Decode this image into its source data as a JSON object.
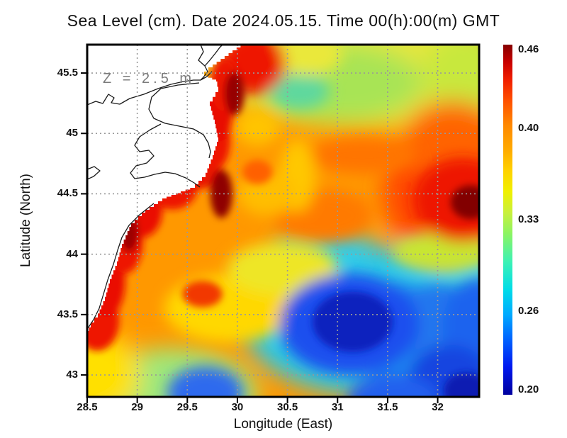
{
  "title": "Sea Level (cm). Date 2024.05.15. Time 00(h):00(m) GMT",
  "annotation": "Z = 2.5 m",
  "axes": {
    "x": {
      "label": "Longitude (East)",
      "ticks": [
        "28.5",
        "29",
        "29.5",
        "30",
        "30.5",
        "31",
        "31.5",
        "32"
      ],
      "range": [
        28.5,
        32.41
      ]
    },
    "y": {
      "label": "Latitude (North)",
      "ticks": [
        "45.5",
        "45",
        "44.5",
        "44",
        "43.5",
        "43"
      ],
      "range": [
        42.82,
        45.74
      ]
    }
  },
  "colorbar": {
    "ticks": [
      "0.46",
      "0.40",
      "0.33",
      "0.26",
      "0.20"
    ],
    "min": 0.2,
    "max": 0.46,
    "gradient": [
      [
        0,
        "#00009E"
      ],
      [
        0.08,
        "#0018F0"
      ],
      [
        0.16,
        "#0064FF"
      ],
      [
        0.23,
        "#00AAFF"
      ],
      [
        0.3,
        "#00DCE8"
      ],
      [
        0.38,
        "#3CF2B4"
      ],
      [
        0.46,
        "#8CF462"
      ],
      [
        0.52,
        "#C8F03C"
      ],
      [
        0.58,
        "#F0F000"
      ],
      [
        0.64,
        "#FFD200"
      ],
      [
        0.7,
        "#FFAA00"
      ],
      [
        0.77,
        "#FF8800"
      ],
      [
        0.84,
        "#FF5000"
      ],
      [
        0.9,
        "#F01E00"
      ],
      [
        0.95,
        "#C80000"
      ],
      [
        1,
        "#860000"
      ]
    ]
  },
  "chart_data": {
    "type": "heatmap",
    "title": "Sea Level (cm). Date 2024.05.15. Time 00(h):00(m) GMT",
    "xlabel": "Longitude (East)",
    "ylabel": "Latitude (North)",
    "depth_annotation": "Z = 2.5 m",
    "value_range": [
      0.2,
      0.46
    ],
    "colorbar_ticks": [
      0.46,
      0.4,
      0.33,
      0.26,
      0.2
    ],
    "lon_range": [
      28.5,
      32.41
    ],
    "lat_range": [
      42.82,
      45.74
    ],
    "grid_on": true,
    "legend_position": "right-colorbar",
    "sampled_grid": {
      "lons": [
        28.5,
        29.0,
        29.5,
        30.0,
        30.5,
        31.0,
        31.5,
        32.0,
        32.4
      ],
      "lats": [
        45.5,
        45.0,
        44.5,
        44.0,
        43.5,
        43.0
      ],
      "values": [
        [
          null,
          null,
          null,
          0.44,
          0.37,
          0.36,
          0.36,
          0.37,
          0.38
        ],
        [
          null,
          null,
          null,
          0.42,
          0.4,
          0.37,
          0.37,
          0.38,
          0.39
        ],
        [
          null,
          null,
          null,
          0.41,
          0.41,
          0.4,
          0.4,
          0.42,
          0.46
        ],
        [
          null,
          0.43,
          0.41,
          0.41,
          0.41,
          0.41,
          0.4,
          0.36,
          0.31
        ],
        [
          0.44,
          0.41,
          0.4,
          0.39,
          0.33,
          0.25,
          0.28,
          0.27,
          0.25
        ],
        [
          0.39,
          0.37,
          0.32,
          0.3,
          0.31,
          0.26,
          0.28,
          0.24,
          0.22
        ]
      ],
      "note": "null = land (north-western Black Sea coast / Danube delta)"
    },
    "features": [
      {
        "name": "maximum (dark red spot)",
        "lon": 32.3,
        "lat": 44.45,
        "value": 0.46
      },
      {
        "name": "coastal high band along west coast",
        "value": 0.44
      },
      {
        "name": "high patch near Danube delta",
        "lon": 30.1,
        "lat": 45.55,
        "value": 0.44
      },
      {
        "name": "minimum (dark blue center)",
        "lon": 31.15,
        "lat": 43.42,
        "value": 0.2
      },
      {
        "name": "low center bottom-right",
        "lon": 32.2,
        "lat": 42.9,
        "value": 0.22
      },
      {
        "name": "low spot bottom-left",
        "lon": 29.68,
        "lat": 42.85,
        "value": 0.27
      }
    ]
  },
  "map": {
    "base_color": "#FF9800",
    "land_color": "#FFFFFF",
    "coast_color": "#1a1a1a",
    "grid_color": "#999999",
    "land_steps": [
      [
        222,
        0
      ],
      [
        177,
        32
      ],
      [
        165,
        44
      ],
      [
        182,
        52
      ],
      [
        185,
        67
      ],
      [
        173,
        87
      ],
      [
        180,
        112
      ],
      [
        185,
        137
      ],
      [
        177,
        162
      ],
      [
        167,
        187
      ],
      [
        152,
        202
      ],
      [
        112,
        217
      ],
      [
        82,
        237
      ],
      [
        62,
        257
      ],
      [
        49,
        287
      ],
      [
        42,
        312
      ],
      [
        32,
        337
      ],
      [
        25,
        362
      ],
      [
        15,
        385
      ],
      [
        5,
        399
      ],
      [
        0,
        409
      ]
    ],
    "coastlines": [
      [
        [
          0,
          85
        ],
        [
          12,
          80
        ],
        [
          22,
          83
        ],
        [
          30,
          70
        ],
        [
          38,
          75
        ],
        [
          34,
          82
        ],
        [
          46,
          84
        ],
        [
          60,
          76
        ],
        [
          80,
          70
        ],
        [
          100,
          62
        ],
        [
          118,
          56
        ],
        [
          136,
          52
        ],
        [
          150,
          50
        ],
        [
          160,
          50
        ]
      ],
      [
        [
          160,
          0
        ],
        [
          164,
          10
        ],
        [
          157,
          22
        ],
        [
          166,
          30
        ],
        [
          173,
          22
        ],
        [
          181,
          12
        ],
        [
          187,
          4
        ],
        [
          191,
          0
        ]
      ],
      [
        [
          166,
          30
        ],
        [
          170,
          38
        ],
        [
          164,
          46
        ],
        [
          160,
          50
        ],
        [
          169,
          45
        ],
        [
          176,
          38
        ]
      ],
      [
        [
          158,
          54
        ],
        [
          128,
          57
        ],
        [
          104,
          62
        ],
        [
          91,
          74
        ],
        [
          87,
          91
        ],
        [
          94,
          104
        ],
        [
          110,
          111
        ],
        [
          130,
          115
        ],
        [
          150,
          119
        ],
        [
          164,
          127
        ],
        [
          171,
          139
        ],
        [
          174,
          151
        ],
        [
          172,
          160
        ]
      ],
      [
        [
          104,
          112
        ],
        [
          89,
          120
        ],
        [
          74,
          130
        ],
        [
          67,
          142
        ],
        [
          74,
          151
        ],
        [
          87,
          149
        ],
        [
          94,
          157
        ],
        [
          84,
          167
        ],
        [
          69,
          171
        ],
        [
          61,
          181
        ],
        [
          67,
          189
        ],
        [
          81,
          187
        ],
        [
          95,
          183
        ],
        [
          110,
          180
        ],
        [
          124,
          182
        ],
        [
          139,
          188
        ],
        [
          151,
          195
        ],
        [
          159,
          201
        ]
      ],
      [
        [
          94,
          224
        ],
        [
          74,
          240
        ],
        [
          59,
          255
        ],
        [
          49,
          272
        ],
        [
          43,
          290
        ],
        [
          37,
          310
        ],
        [
          29,
          332
        ],
        [
          23,
          352
        ],
        [
          17,
          372
        ],
        [
          9,
          388
        ],
        [
          1,
          400
        ]
      ],
      [
        [
          0,
          176
        ],
        [
          10,
          172
        ],
        [
          18,
          178
        ],
        [
          9,
          186
        ],
        [
          0,
          190
        ]
      ]
    ],
    "field_blobs": [
      {
        "g": 0,
        "lon": 31.2,
        "lat": 45.55,
        "rx": 1.5,
        "ry": 0.5,
        "c": "#E6E63C"
      },
      {
        "g": 0,
        "lon": 31.0,
        "lat": 45.42,
        "rx": 0.85,
        "ry": 0.32,
        "c": "#A8E455"
      },
      {
        "g": 0,
        "lon": 32.35,
        "lat": 45.5,
        "rx": 0.5,
        "ry": 0.35,
        "c": "#C8E83C"
      },
      {
        "g": 0,
        "lon": 32.2,
        "lat": 44.5,
        "rx": 0.75,
        "ry": 0.55,
        "c": "#FF4A00"
      },
      {
        "g": 0,
        "lon": 32.15,
        "lat": 44.95,
        "rx": 0.5,
        "ry": 0.32,
        "c": "#FF6400"
      },
      {
        "g": 0,
        "lon": 31.3,
        "lat": 43.45,
        "rx": 1.25,
        "ry": 0.62,
        "c": "#2AC8E6"
      },
      {
        "g": 0,
        "lon": 30.9,
        "lat": 44.0,
        "rx": 0.5,
        "ry": 0.2,
        "c": "#30CCE8"
      },
      {
        "g": 0,
        "lon": 32.45,
        "lat": 43.75,
        "rx": 0.45,
        "ry": 0.3,
        "c": "#35D2DC"
      },
      {
        "g": 0,
        "lon": 29.35,
        "lat": 42.82,
        "rx": 0.85,
        "ry": 0.4,
        "c": "#9FE87A"
      },
      {
        "g": 0,
        "lon": 28.58,
        "lat": 43.0,
        "rx": 0.45,
        "ry": 0.35,
        "c": "#FFE000"
      },
      {
        "g": 1,
        "lon": 30.62,
        "lat": 45.35,
        "rx": 0.3,
        "ry": 0.15,
        "c": "#5FD89E"
      },
      {
        "g": 1,
        "lon": 30.7,
        "lat": 45.66,
        "rx": 0.35,
        "ry": 0.18,
        "c": "#EAE83A"
      },
      {
        "g": 1,
        "lon": 29.92,
        "lat": 43.55,
        "rx": 0.65,
        "ry": 0.28,
        "c": "#FFD800"
      },
      {
        "g": 1,
        "lon": 30.45,
        "lat": 43.88,
        "rx": 0.55,
        "ry": 0.22,
        "c": "#EEE626"
      },
      {
        "g": 1,
        "lon": 32.05,
        "lat": 44.02,
        "rx": 0.5,
        "ry": 0.16,
        "c": "#C8E632"
      },
      {
        "g": 1,
        "lon": 31.6,
        "lat": 43.32,
        "rx": 0.4,
        "ry": 0.45,
        "c": "#1E86F0"
      },
      {
        "g": 1,
        "lon": 32.0,
        "lat": 43.45,
        "rx": 0.5,
        "ry": 0.3,
        "c": "#2277EE"
      },
      {
        "g": 1,
        "lon": 32.4,
        "lat": 43.4,
        "rx": 0.35,
        "ry": 0.4,
        "c": "#1E64EE"
      },
      {
        "g": 1,
        "lon": 31.12,
        "lat": 43.42,
        "rx": 0.7,
        "ry": 0.42,
        "c": "#1A50EE"
      },
      {
        "g": 1,
        "lon": 32.12,
        "lat": 42.95,
        "rx": 0.42,
        "ry": 0.3,
        "c": "#1545E0"
      },
      {
        "g": 1,
        "lon": 29.68,
        "lat": 42.85,
        "rx": 0.38,
        "ry": 0.22,
        "c": "#2E6AEE"
      },
      {
        "g": 1,
        "lon": 31.55,
        "lat": 42.8,
        "rx": 0.45,
        "ry": 0.2,
        "c": "#2060EE"
      },
      {
        "g": 1,
        "lon": 31.25,
        "lat": 44.82,
        "rx": 0.55,
        "ry": 0.15,
        "c": "#FF7400"
      },
      {
        "g": 1,
        "lon": 30.85,
        "lat": 44.32,
        "rx": 0.5,
        "ry": 0.22,
        "c": "#FF7A00"
      },
      {
        "g": 1,
        "lon": 30.6,
        "lat": 44.65,
        "rx": 0.18,
        "ry": 0.3,
        "c": "#FFC800"
      },
      {
        "g": 1,
        "lon": 30.2,
        "lat": 45.05,
        "rx": 0.22,
        "ry": 0.15,
        "c": "#FFC400"
      },
      {
        "g": 1,
        "lon": 30.3,
        "lat": 44.5,
        "rx": 0.3,
        "ry": 0.18,
        "c": "#FFBE00"
      },
      {
        "g": 1,
        "lon": 32.25,
        "lat": 44.45,
        "rx": 0.5,
        "ry": 0.35,
        "c": "#EE1600"
      },
      {
        "g": 1,
        "lon": 30.15,
        "lat": 45.58,
        "rx": 0.33,
        "ry": 0.26,
        "c": "#EE1400"
      },
      {
        "g": 2,
        "lon": 31.15,
        "lat": 43.44,
        "rx": 0.4,
        "ry": 0.25,
        "c": "#0A22BE"
      },
      {
        "g": 2,
        "lon": 32.28,
        "lat": 42.87,
        "rx": 0.22,
        "ry": 0.15,
        "c": "#0A1CB2"
      },
      {
        "g": 2,
        "lon": 32.33,
        "lat": 44.43,
        "rx": 0.2,
        "ry": 0.14,
        "c": "#820000"
      },
      {
        "g": 2,
        "lon": 29.65,
        "lat": 43.67,
        "rx": 0.2,
        "ry": 0.11,
        "c": "#F23800"
      },
      {
        "g": 2,
        "lon": 30.2,
        "lat": 44.68,
        "rx": 0.15,
        "ry": 0.1,
        "c": "#FF6000"
      },
      {
        "g": 2,
        "lon": 28.6,
        "lat": 43.45,
        "rx": 0.22,
        "ry": 0.25,
        "c": "#EE1200"
      },
      {
        "g": 2,
        "lon": 28.7,
        "lat": 43.78,
        "rx": 0.18,
        "ry": 0.3,
        "c": "#EA1000"
      },
      {
        "g": 2,
        "lon": 28.88,
        "lat": 44.12,
        "rx": 0.18,
        "ry": 0.28,
        "c": "#EE1200"
      },
      {
        "g": 2,
        "lon": 29.05,
        "lat": 44.36,
        "rx": 0.2,
        "ry": 0.22,
        "c": "#EA1000"
      },
      {
        "g": 2,
        "lon": 29.35,
        "lat": 44.55,
        "rx": 0.25,
        "ry": 0.18,
        "c": "#EE1600"
      },
      {
        "g": 2,
        "lon": 29.62,
        "lat": 44.72,
        "rx": 0.2,
        "ry": 0.18,
        "c": "#EA1200"
      },
      {
        "g": 2,
        "lon": 29.78,
        "lat": 44.95,
        "rx": 0.15,
        "ry": 0.25,
        "c": "#EE1200"
      },
      {
        "g": 2,
        "lon": 29.8,
        "lat": 45.18,
        "rx": 0.15,
        "ry": 0.25,
        "c": "#E81000"
      },
      {
        "g": 2,
        "lon": 29.88,
        "lat": 45.4,
        "rx": 0.15,
        "ry": 0.22,
        "c": "#EE1400"
      },
      {
        "g": 2,
        "lon": 28.92,
        "lat": 44.18,
        "rx": 0.09,
        "ry": 0.16,
        "c": "#9B0000"
      },
      {
        "g": 2,
        "lon": 29.84,
        "lat": 44.5,
        "rx": 0.11,
        "ry": 0.2,
        "c": "#8F0000"
      },
      {
        "g": 2,
        "lon": 29.97,
        "lat": 45.33,
        "rx": 0.1,
        "ry": 0.18,
        "c": "#960000"
      }
    ]
  }
}
